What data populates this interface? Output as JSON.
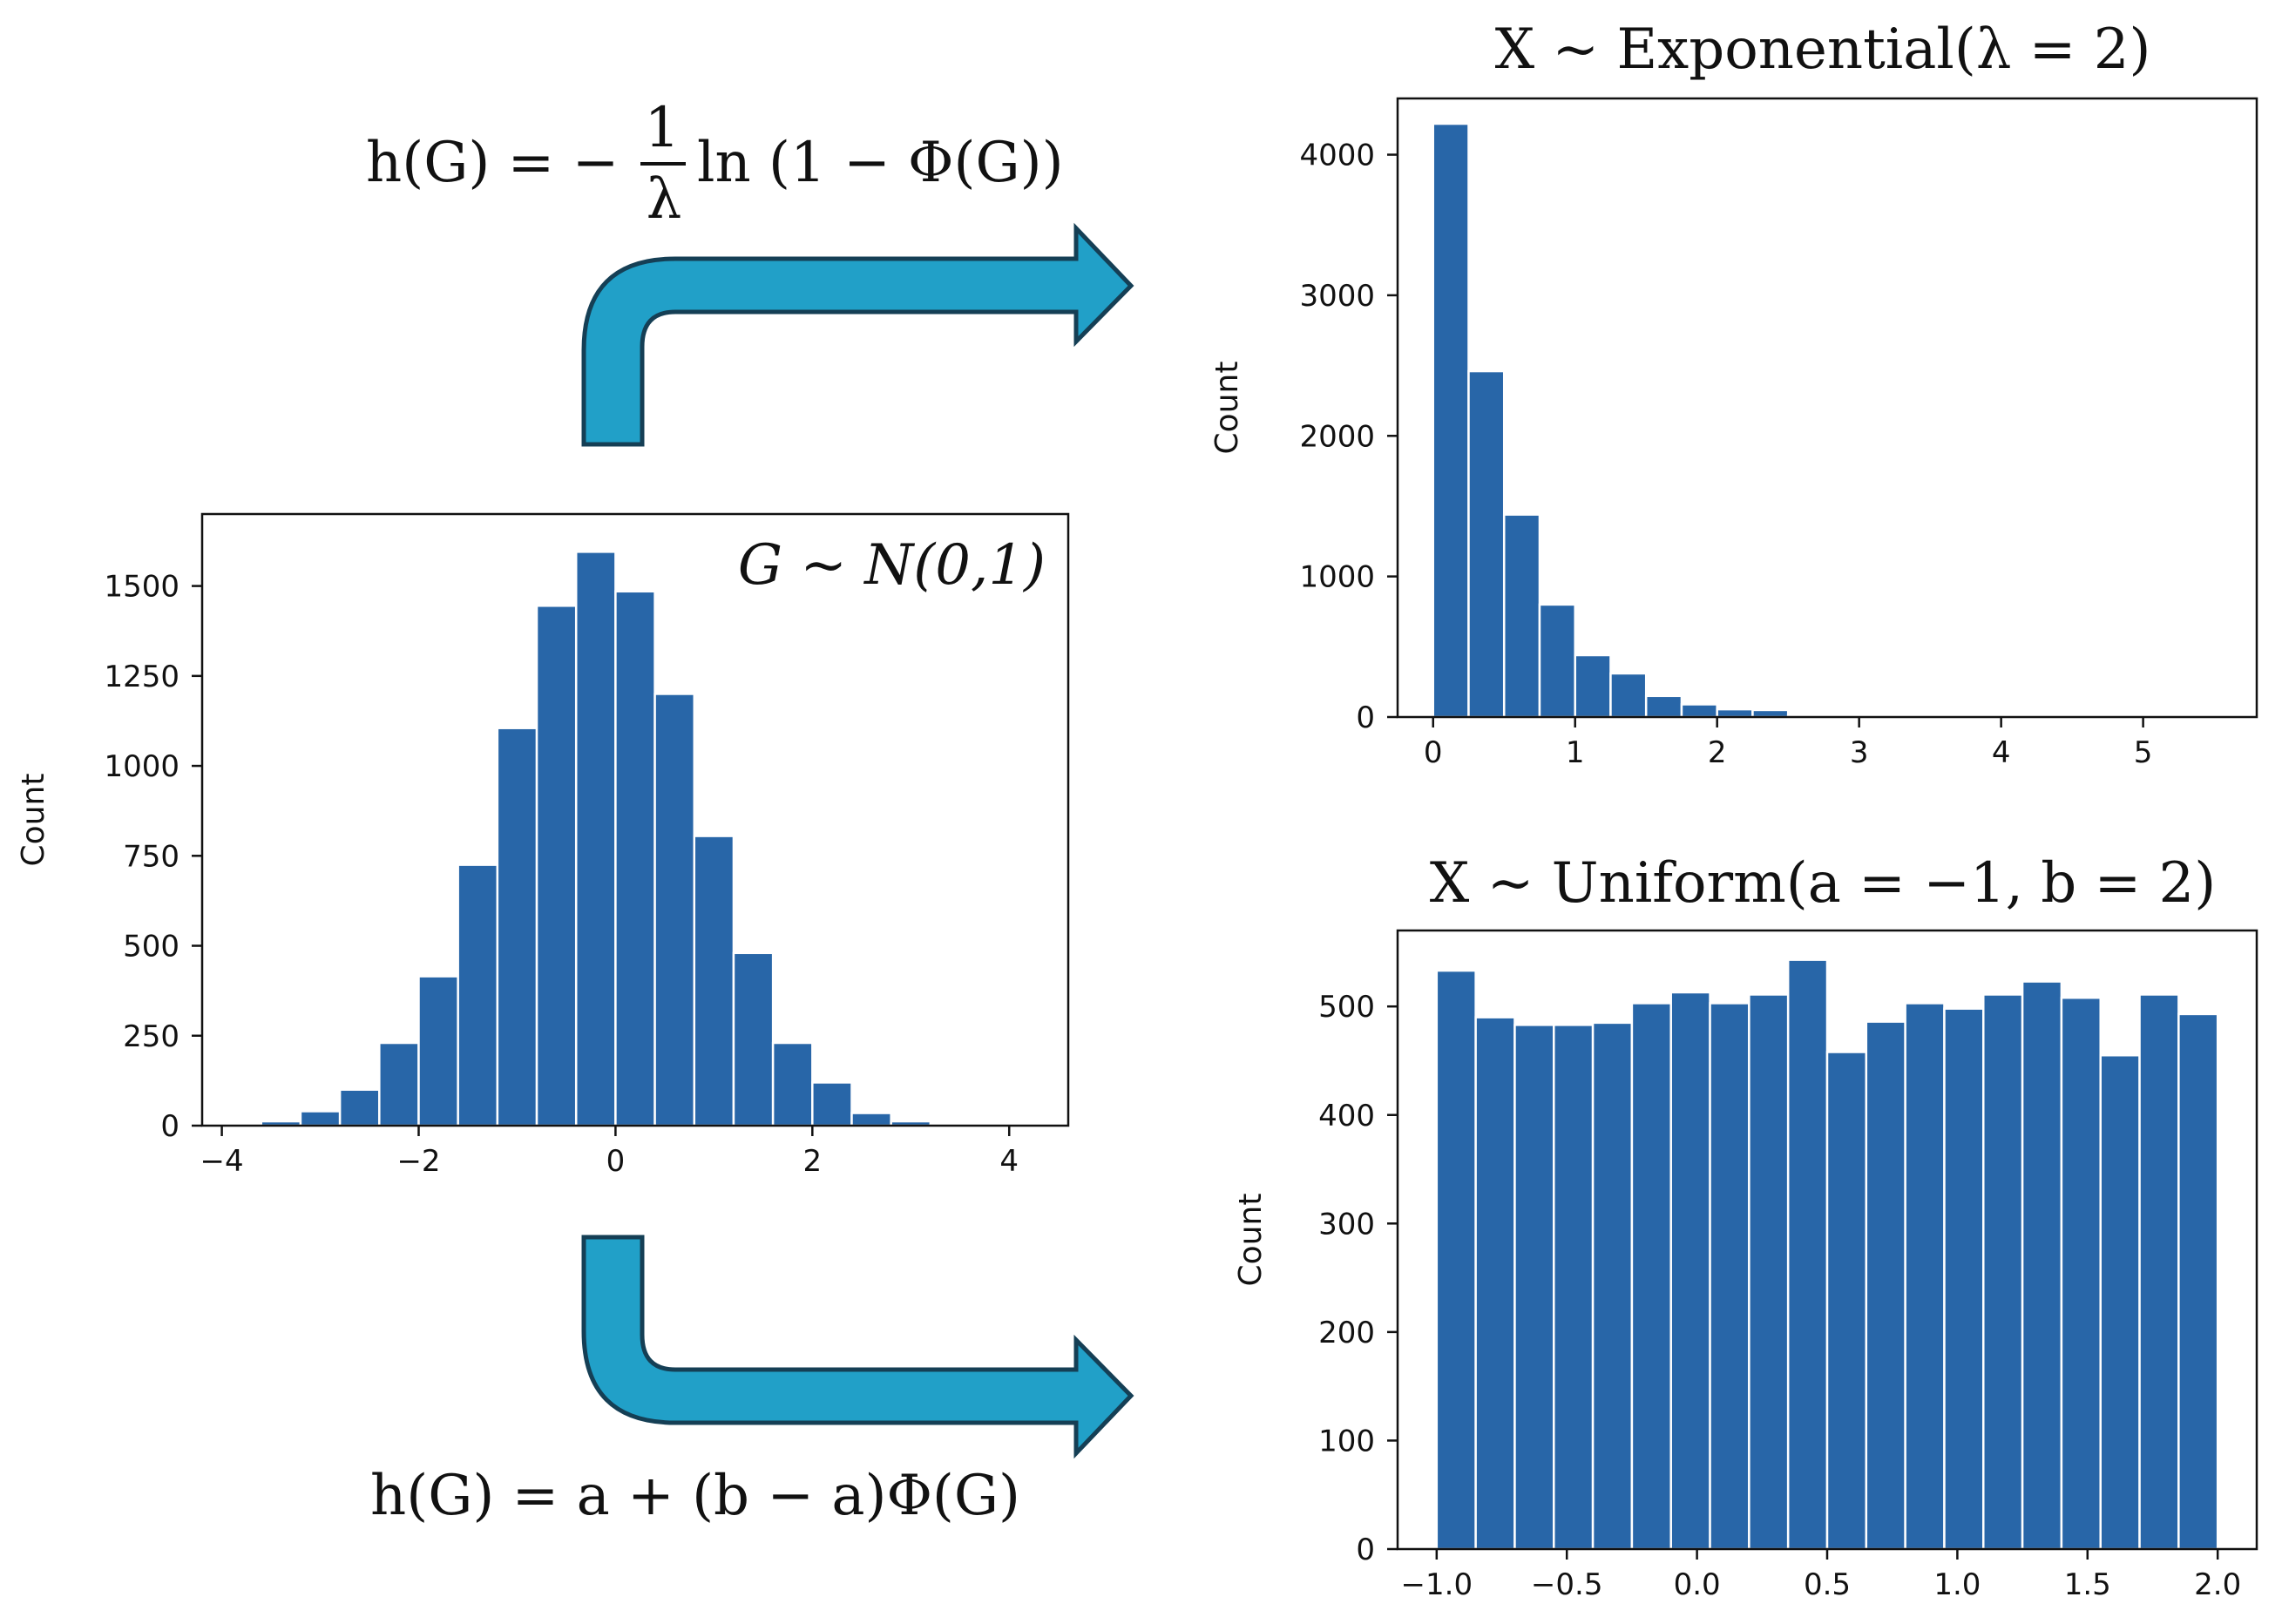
{
  "chart_data": [
    {
      "id": "normal",
      "type": "bar",
      "title": "G ~ N(0,1)",
      "xlabel": "",
      "ylabel": "Count",
      "xlim": [
        -4.2,
        4.6
      ],
      "ylim": [
        0,
        1700
      ],
      "xticks": [
        -4,
        -2,
        0,
        2,
        4
      ],
      "xtick_labels": [
        "−4",
        "−2",
        "0",
        "2",
        "4"
      ],
      "yticks": [
        0,
        250,
        500,
        750,
        1000,
        1250,
        1500
      ],
      "ytick_labels": [
        "0",
        "250",
        "500",
        "750",
        "1000",
        "1250",
        "1500"
      ],
      "bin_edges": [
        -3.6,
        -3.2,
        -2.8,
        -2.4,
        -2.0,
        -1.6,
        -1.2,
        -0.8,
        -0.4,
        0.0,
        0.4,
        0.8,
        1.2,
        1.6,
        2.0,
        2.4,
        2.8,
        3.2,
        3.6,
        4.0
      ],
      "values": [
        12,
        40,
        100,
        230,
        415,
        725,
        1105,
        1445,
        1595,
        1485,
        1200,
        805,
        480,
        230,
        120,
        35,
        12,
        3,
        1
      ]
    },
    {
      "id": "exponential",
      "type": "bar",
      "title": "X ~  Exponential(λ = 2)",
      "xlabel": "",
      "ylabel": "Count",
      "xlim": [
        -0.25,
        5.8
      ],
      "ylim": [
        0,
        4400
      ],
      "xticks": [
        0,
        1,
        2,
        3,
        4,
        5
      ],
      "xtick_labels": [
        "0",
        "1",
        "2",
        "3",
        "4",
        "5"
      ],
      "yticks": [
        0,
        1000,
        2000,
        3000,
        4000
      ],
      "ytick_labels": [
        "0",
        "1000",
        "2000",
        "3000",
        "4000"
      ],
      "bin_edges": [
        0,
        0.25,
        0.5,
        0.75,
        1.0,
        1.25,
        1.5,
        1.75,
        2.0,
        2.25,
        2.5,
        2.75,
        3.0,
        3.25,
        3.5,
        3.75,
        4.0,
        4.25,
        4.5,
        4.75,
        5.0
      ],
      "values": [
        4220,
        2460,
        1440,
        800,
        440,
        310,
        150,
        90,
        55,
        50,
        15,
        8,
        5,
        3,
        2,
        1,
        1,
        1,
        0,
        0
      ]
    },
    {
      "id": "uniform",
      "type": "bar",
      "title": "X ~  Uniform(a = −1, b = 2)",
      "xlabel": "",
      "ylabel": "Count",
      "xlim": [
        -1.15,
        2.15
      ],
      "ylim": [
        0,
        570
      ],
      "xticks": [
        -1.0,
        -0.5,
        0.0,
        0.5,
        1.0,
        1.5,
        2.0
      ],
      "xtick_labels": [
        "−1.0",
        "−0.5",
        "0.0",
        "0.5",
        "1.0",
        "1.5",
        "2.0"
      ],
      "yticks": [
        0,
        100,
        200,
        300,
        400,
        500
      ],
      "ytick_labels": [
        "0",
        "100",
        "200",
        "300",
        "400",
        "500"
      ],
      "bin_edges": [
        -1.0,
        -0.85,
        -0.7,
        -0.55,
        -0.4,
        -0.25,
        -0.1,
        0.05,
        0.2,
        0.35,
        0.5,
        0.65,
        0.8,
        0.95,
        1.1,
        1.25,
        1.4,
        1.55,
        1.7,
        1.85,
        2.0
      ],
      "values": [
        533,
        490,
        483,
        483,
        485,
        503,
        513,
        503,
        511,
        543,
        458,
        486,
        503,
        498,
        511,
        523,
        508,
        455,
        511,
        493
      ]
    }
  ],
  "annotations": {
    "top_formula": "h(G) = −(1/λ) ln(1 − Φ(G))",
    "top_formula_parts": {
      "lhs": "h(G) = −",
      "num": "1",
      "den": "λ",
      "rhs": "ln (1 − Φ(G))"
    },
    "bottom_formula": "h(G) = a + (b − a)Φ(G)"
  },
  "colors": {
    "bar": "#2866a8",
    "arrow_fill": "#21a0c8",
    "arrow_stroke": "#153f55"
  }
}
